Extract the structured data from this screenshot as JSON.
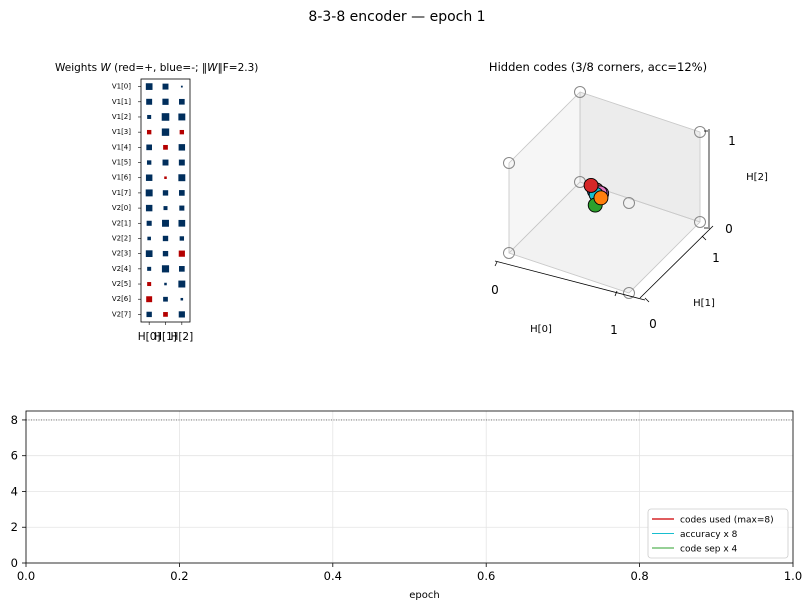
{
  "suptitle": "8-3-8 encoder — epoch 1",
  "colors": {
    "positive": "#b40000",
    "negative": "#002e5c",
    "codes_used": "#d62728",
    "accuracy": "#17becf",
    "code_sep": "#2ca02c",
    "grid": "#e4e4e4"
  },
  "chart_data": [
    {
      "type": "heatmap",
      "title_prefix": "Weights ",
      "title_var": "W",
      "title_mid": "  (red=+, blue=-; ‖",
      "title_var2": "W",
      "title_sub": "‖F",
      "title_end": "=2.3)",
      "rows": [
        "V1[0]",
        "V1[1]",
        "V1[2]",
        "V1[3]",
        "V1[4]",
        "V1[5]",
        "V1[6]",
        "V1[7]",
        "V2[0]",
        "V2[1]",
        "V2[2]",
        "V2[3]",
        "V2[4]",
        "V2[5]",
        "V2[6]",
        "V2[7]"
      ],
      "columns": [
        "H[0]",
        "H[1]",
        "H[2]"
      ],
      "encoding": "hinton: square area ~ |w|, color = sign",
      "values": [
        [
          -0.7,
          -0.55,
          -0.05
        ],
        [
          -0.55,
          -0.6,
          -0.5
        ],
        [
          -0.25,
          -0.9,
          -0.75
        ],
        [
          0.3,
          -0.85,
          0.3
        ],
        [
          -0.5,
          0.35,
          -0.65
        ],
        [
          -0.3,
          -0.55,
          -0.55
        ],
        [
          -0.65,
          0.1,
          -0.75
        ],
        [
          -0.75,
          -0.45,
          -0.5
        ],
        [
          -0.65,
          -0.25,
          -0.4
        ],
        [
          -0.4,
          -0.75,
          -0.7
        ],
        [
          -0.2,
          -0.45,
          -0.3
        ],
        [
          -0.7,
          -0.45,
          0.6
        ],
        [
          -0.25,
          -0.8,
          -0.5
        ],
        [
          0.25,
          -0.1,
          -0.75
        ],
        [
          0.55,
          -0.35,
          -0.1
        ],
        [
          -0.45,
          0.35,
          -0.6
        ]
      ]
    },
    {
      "type": "scatter",
      "projection": "3d",
      "title": "Hidden codes  (3/8 corners, acc=12%)",
      "xlabel": "H[0]",
      "ylabel": "H[1]",
      "zlabel": "H[2]",
      "xticks": [
        "0",
        "1"
      ],
      "yticks": [
        "0",
        "1"
      ],
      "zticks": [
        "0",
        "1"
      ],
      "xlim": [
        0,
        1
      ],
      "ylim": [
        0,
        1
      ],
      "zlim": [
        0,
        1
      ],
      "corners": [
        [
          0,
          0,
          0
        ],
        [
          1,
          0,
          0
        ],
        [
          0,
          1,
          0
        ],
        [
          1,
          1,
          0
        ],
        [
          0,
          0,
          1
        ],
        [
          1,
          0,
          1
        ],
        [
          0,
          1,
          1
        ],
        [
          1,
          1,
          1
        ]
      ],
      "codes": [
        {
          "color": "#1f77b4",
          "xyz": [
            0.44,
            0.46,
            0.52
          ]
        },
        {
          "color": "#8c564b",
          "xyz": [
            0.45,
            0.47,
            0.53
          ]
        },
        {
          "color": "#9467bd",
          "xyz": [
            0.5,
            0.46,
            0.52
          ]
        },
        {
          "color": "#e377c2",
          "xyz": [
            0.48,
            0.47,
            0.51
          ]
        },
        {
          "color": "#17becf",
          "xyz": [
            0.46,
            0.45,
            0.5
          ]
        },
        {
          "color": "#2ca02c",
          "xyz": [
            0.47,
            0.42,
            0.41
          ]
        },
        {
          "color": "#ff7f0e",
          "xyz": [
            0.5,
            0.45,
            0.48
          ]
        },
        {
          "color": "#d62728",
          "xyz": [
            0.4,
            0.48,
            0.55
          ]
        }
      ]
    },
    {
      "type": "line",
      "xlabel": "epoch",
      "ylabel": "",
      "xlim": [
        0,
        1
      ],
      "ylim": [
        0,
        8.5
      ],
      "xticks": [
        "0.0",
        "0.2",
        "0.4",
        "0.6",
        "0.8",
        "1.0"
      ],
      "yticks": [
        "0",
        "2",
        "4",
        "6",
        "8"
      ],
      "grid": true,
      "reference_line": 8,
      "legend_placement": "lower-right",
      "series": [
        {
          "name": "codes used (max=8)",
          "color": "#d62728",
          "x": [],
          "y": []
        },
        {
          "name": "accuracy x 8",
          "color": "#17becf",
          "x": [],
          "y": []
        },
        {
          "name": "code sep x 4",
          "color": "#2ca02c",
          "x": [],
          "y": []
        }
      ]
    }
  ]
}
